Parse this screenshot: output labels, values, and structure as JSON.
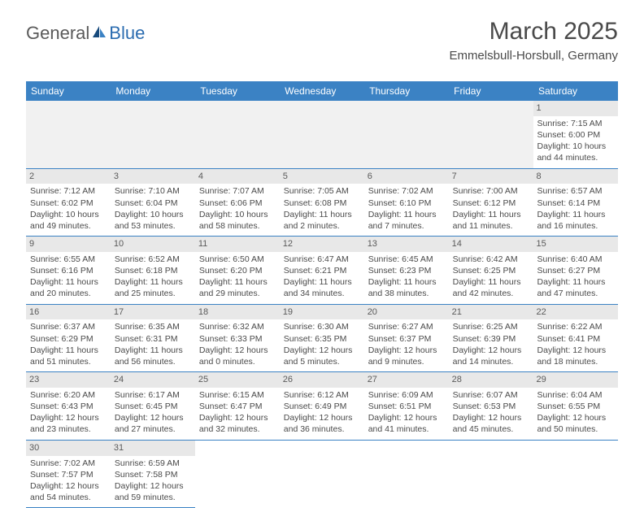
{
  "logo": {
    "general": "General",
    "blue": "Blue"
  },
  "header": {
    "month_title": "March 2025",
    "location": "Emmelsbull-Horsbull, Germany"
  },
  "colors": {
    "header_bg": "#3b82c4",
    "header_text": "#ffffff",
    "border": "#3b82c4",
    "daynum_bg": "#e8e8e8",
    "text": "#4a4a4a",
    "logo_gray": "#5a5a5a",
    "logo_blue": "#2b6cb0"
  },
  "weekdays": [
    "Sunday",
    "Monday",
    "Tuesday",
    "Wednesday",
    "Thursday",
    "Friday",
    "Saturday"
  ],
  "weeks": [
    [
      null,
      null,
      null,
      null,
      null,
      null,
      {
        "n": "1",
        "sr": "Sunrise: 7:15 AM",
        "ss": "Sunset: 6:00 PM",
        "dl": "Daylight: 10 hours and 44 minutes."
      }
    ],
    [
      {
        "n": "2",
        "sr": "Sunrise: 7:12 AM",
        "ss": "Sunset: 6:02 PM",
        "dl": "Daylight: 10 hours and 49 minutes."
      },
      {
        "n": "3",
        "sr": "Sunrise: 7:10 AM",
        "ss": "Sunset: 6:04 PM",
        "dl": "Daylight: 10 hours and 53 minutes."
      },
      {
        "n": "4",
        "sr": "Sunrise: 7:07 AM",
        "ss": "Sunset: 6:06 PM",
        "dl": "Daylight: 10 hours and 58 minutes."
      },
      {
        "n": "5",
        "sr": "Sunrise: 7:05 AM",
        "ss": "Sunset: 6:08 PM",
        "dl": "Daylight: 11 hours and 2 minutes."
      },
      {
        "n": "6",
        "sr": "Sunrise: 7:02 AM",
        "ss": "Sunset: 6:10 PM",
        "dl": "Daylight: 11 hours and 7 minutes."
      },
      {
        "n": "7",
        "sr": "Sunrise: 7:00 AM",
        "ss": "Sunset: 6:12 PM",
        "dl": "Daylight: 11 hours and 11 minutes."
      },
      {
        "n": "8",
        "sr": "Sunrise: 6:57 AM",
        "ss": "Sunset: 6:14 PM",
        "dl": "Daylight: 11 hours and 16 minutes."
      }
    ],
    [
      {
        "n": "9",
        "sr": "Sunrise: 6:55 AM",
        "ss": "Sunset: 6:16 PM",
        "dl": "Daylight: 11 hours and 20 minutes."
      },
      {
        "n": "10",
        "sr": "Sunrise: 6:52 AM",
        "ss": "Sunset: 6:18 PM",
        "dl": "Daylight: 11 hours and 25 minutes."
      },
      {
        "n": "11",
        "sr": "Sunrise: 6:50 AM",
        "ss": "Sunset: 6:20 PM",
        "dl": "Daylight: 11 hours and 29 minutes."
      },
      {
        "n": "12",
        "sr": "Sunrise: 6:47 AM",
        "ss": "Sunset: 6:21 PM",
        "dl": "Daylight: 11 hours and 34 minutes."
      },
      {
        "n": "13",
        "sr": "Sunrise: 6:45 AM",
        "ss": "Sunset: 6:23 PM",
        "dl": "Daylight: 11 hours and 38 minutes."
      },
      {
        "n": "14",
        "sr": "Sunrise: 6:42 AM",
        "ss": "Sunset: 6:25 PM",
        "dl": "Daylight: 11 hours and 42 minutes."
      },
      {
        "n": "15",
        "sr": "Sunrise: 6:40 AM",
        "ss": "Sunset: 6:27 PM",
        "dl": "Daylight: 11 hours and 47 minutes."
      }
    ],
    [
      {
        "n": "16",
        "sr": "Sunrise: 6:37 AM",
        "ss": "Sunset: 6:29 PM",
        "dl": "Daylight: 11 hours and 51 minutes."
      },
      {
        "n": "17",
        "sr": "Sunrise: 6:35 AM",
        "ss": "Sunset: 6:31 PM",
        "dl": "Daylight: 11 hours and 56 minutes."
      },
      {
        "n": "18",
        "sr": "Sunrise: 6:32 AM",
        "ss": "Sunset: 6:33 PM",
        "dl": "Daylight: 12 hours and 0 minutes."
      },
      {
        "n": "19",
        "sr": "Sunrise: 6:30 AM",
        "ss": "Sunset: 6:35 PM",
        "dl": "Daylight: 12 hours and 5 minutes."
      },
      {
        "n": "20",
        "sr": "Sunrise: 6:27 AM",
        "ss": "Sunset: 6:37 PM",
        "dl": "Daylight: 12 hours and 9 minutes."
      },
      {
        "n": "21",
        "sr": "Sunrise: 6:25 AM",
        "ss": "Sunset: 6:39 PM",
        "dl": "Daylight: 12 hours and 14 minutes."
      },
      {
        "n": "22",
        "sr": "Sunrise: 6:22 AM",
        "ss": "Sunset: 6:41 PM",
        "dl": "Daylight: 12 hours and 18 minutes."
      }
    ],
    [
      {
        "n": "23",
        "sr": "Sunrise: 6:20 AM",
        "ss": "Sunset: 6:43 PM",
        "dl": "Daylight: 12 hours and 23 minutes."
      },
      {
        "n": "24",
        "sr": "Sunrise: 6:17 AM",
        "ss": "Sunset: 6:45 PM",
        "dl": "Daylight: 12 hours and 27 minutes."
      },
      {
        "n": "25",
        "sr": "Sunrise: 6:15 AM",
        "ss": "Sunset: 6:47 PM",
        "dl": "Daylight: 12 hours and 32 minutes."
      },
      {
        "n": "26",
        "sr": "Sunrise: 6:12 AM",
        "ss": "Sunset: 6:49 PM",
        "dl": "Daylight: 12 hours and 36 minutes."
      },
      {
        "n": "27",
        "sr": "Sunrise: 6:09 AM",
        "ss": "Sunset: 6:51 PM",
        "dl": "Daylight: 12 hours and 41 minutes."
      },
      {
        "n": "28",
        "sr": "Sunrise: 6:07 AM",
        "ss": "Sunset: 6:53 PM",
        "dl": "Daylight: 12 hours and 45 minutes."
      },
      {
        "n": "29",
        "sr": "Sunrise: 6:04 AM",
        "ss": "Sunset: 6:55 PM",
        "dl": "Daylight: 12 hours and 50 minutes."
      }
    ],
    [
      {
        "n": "30",
        "sr": "Sunrise: 7:02 AM",
        "ss": "Sunset: 7:57 PM",
        "dl": "Daylight: 12 hours and 54 minutes."
      },
      {
        "n": "31",
        "sr": "Sunrise: 6:59 AM",
        "ss": "Sunset: 7:58 PM",
        "dl": "Daylight: 12 hours and 59 minutes."
      },
      null,
      null,
      null,
      null,
      null
    ]
  ]
}
